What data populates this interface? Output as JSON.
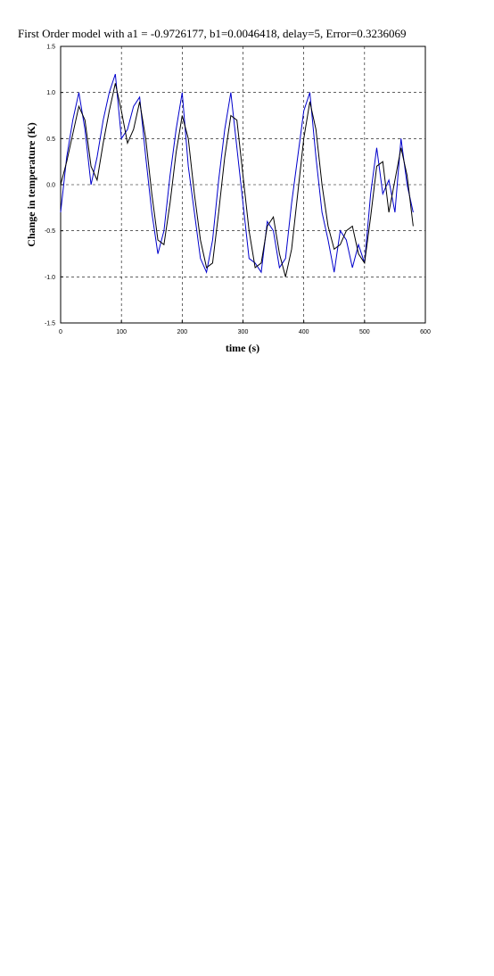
{
  "chart_data": {
    "type": "line",
    "title": "First Order model with a1 = -0.9726177, b1=0.0046418, delay=5, Error=0.3236069",
    "x_label": "time (s)",
    "y_label": "Change in temperature (K)",
    "x": [
      0,
      10,
      20,
      30,
      40,
      50,
      60,
      70,
      80,
      90,
      100,
      110,
      120,
      130,
      140,
      150,
      160,
      170,
      180,
      190,
      200,
      210,
      220,
      230,
      240,
      250,
      260,
      270,
      280,
      290,
      300,
      310,
      320,
      330,
      340,
      350,
      360,
      370,
      380,
      390,
      400,
      410,
      420,
      430,
      440,
      450,
      460,
      470,
      480,
      490,
      500,
      510,
      520,
      530,
      540,
      550,
      560,
      570,
      580
    ],
    "series": [
      {
        "color": "#0000cc",
        "values": [
          -0.3,
          0.3,
          0.7,
          1.0,
          0.6,
          0.0,
          0.3,
          0.7,
          1.0,
          1.2,
          0.5,
          0.6,
          0.85,
          0.95,
          0.3,
          -0.3,
          -0.75,
          -0.5,
          0.1,
          0.6,
          1.0,
          0.2,
          -0.3,
          -0.8,
          -0.95,
          -0.6,
          0.05,
          0.6,
          1.0,
          0.4,
          -0.2,
          -0.8,
          -0.85,
          -0.95,
          -0.4,
          -0.5,
          -0.9,
          -0.8,
          -0.2,
          0.3,
          0.8,
          1.0,
          0.3,
          -0.3,
          -0.6,
          -0.95,
          -0.5,
          -0.6,
          -0.9,
          -0.65,
          -0.85,
          -0.1,
          0.4,
          -0.1,
          0.05,
          -0.3,
          0.5,
          0.0,
          -0.3
        ]
      },
      {
        "color": "#000000",
        "values": [
          0.0,
          0.25,
          0.55,
          0.85,
          0.7,
          0.2,
          0.05,
          0.45,
          0.8,
          1.1,
          0.8,
          0.45,
          0.6,
          0.9,
          0.5,
          -0.1,
          -0.6,
          -0.65,
          -0.2,
          0.35,
          0.75,
          0.5,
          -0.1,
          -0.6,
          -0.9,
          -0.85,
          -0.3,
          0.3,
          0.75,
          0.7,
          0.1,
          -0.5,
          -0.9,
          -0.85,
          -0.45,
          -0.35,
          -0.75,
          -1.0,
          -0.7,
          -0.1,
          0.5,
          0.9,
          0.6,
          0.0,
          -0.45,
          -0.7,
          -0.65,
          -0.5,
          -0.45,
          -0.75,
          -0.85,
          -0.35,
          0.2,
          0.25,
          -0.3,
          0.05,
          0.4,
          0.1,
          -0.45
        ]
      }
    ],
    "xlim": [
      0,
      600
    ],
    "ylim": [
      -1.5,
      1.5
    ],
    "xticks": [
      0,
      100,
      200,
      300,
      400,
      500,
      600
    ],
    "yticks": [
      -1.5,
      {
        "value": -1,
        "label": "-1.0"
      },
      -0.5,
      {
        "value": 0,
        "label": "0.0"
      },
      0.5,
      {
        "value": 1,
        "label": "1.0"
      },
      1.5
    ],
    "grid": true
  }
}
